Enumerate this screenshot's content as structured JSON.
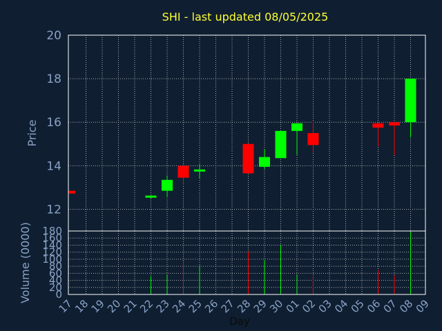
{
  "chart_data": {
    "type": "candlestick",
    "title": "SHI - last updated 08/05/2025",
    "xlabel": "Day",
    "price_panel": {
      "ylabel": "Price",
      "ylim": [
        11,
        20
      ],
      "yticks": [
        12,
        14,
        16,
        18,
        20
      ]
    },
    "volume_panel": {
      "ylabel": "Volume (0000)",
      "ylim": [
        0,
        180
      ],
      "yticks": [
        0,
        20,
        40,
        60,
        80,
        100,
        120,
        140,
        160,
        180
      ]
    },
    "days": [
      "17",
      "18",
      "19",
      "20",
      "21",
      "22",
      "23",
      "24",
      "25",
      "26",
      "27",
      "28",
      "29",
      "30",
      "01",
      "02",
      "03",
      "04",
      "05",
      "06",
      "07",
      "08",
      "09"
    ],
    "colors": {
      "up": "#00ff00",
      "down": "#ff0000",
      "background": "#0f1f31",
      "title": "#ffff33",
      "axis_text": "#8aa2c6"
    },
    "candles": [
      {
        "day": "17",
        "open": 12.85,
        "high": 12.85,
        "low": 12.72,
        "close": 12.72,
        "volume": 0
      },
      {
        "day": "22",
        "open": 12.52,
        "high": 12.58,
        "low": 12.5,
        "close": 12.58,
        "volume": 52
      },
      {
        "day": "23",
        "open": 12.85,
        "high": 13.55,
        "low": 12.55,
        "close": 13.35,
        "volume": 55
      },
      {
        "day": "24",
        "open": 14.0,
        "high": 14.05,
        "low": 13.1,
        "close": 13.45,
        "volume": 95
      },
      {
        "day": "25",
        "open": 13.7,
        "high": 14.05,
        "low": 13.4,
        "close": 13.78,
        "volume": 82
      },
      {
        "day": "28",
        "open": 15.0,
        "high": 15.0,
        "low": 13.65,
        "close": 13.65,
        "volume": 122
      },
      {
        "day": "29",
        "open": 13.95,
        "high": 14.75,
        "low": 13.85,
        "close": 14.4,
        "volume": 98
      },
      {
        "day": "30",
        "open": 14.35,
        "high": 15.6,
        "low": 14.35,
        "close": 15.6,
        "volume": 140
      },
      {
        "day": "01",
        "open": 15.6,
        "high": 15.95,
        "low": 14.5,
        "close": 15.95,
        "volume": 55
      },
      {
        "day": "02",
        "open": 15.5,
        "high": 16.05,
        "low": 14.6,
        "close": 14.95,
        "volume": 52
      },
      {
        "day": "06",
        "open": 15.95,
        "high": 15.95,
        "low": 14.9,
        "close": 15.75,
        "volume": 70
      },
      {
        "day": "07",
        "open": 16.0,
        "high": 16.0,
        "low": 14.5,
        "close": 15.85,
        "volume": 55
      },
      {
        "day": "08",
        "open": 16.0,
        "high": 18.0,
        "low": 15.3,
        "close": 18.0,
        "volume": 178
      }
    ]
  }
}
